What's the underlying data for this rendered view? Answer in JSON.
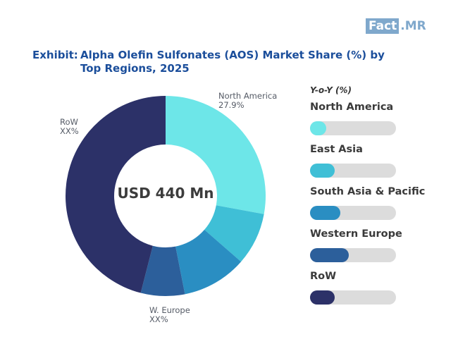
{
  "brand": {
    "logo_part1": "Fact",
    "logo_part2": ".MR"
  },
  "title": {
    "prefix": "Exhibit:",
    "text": "Alpha Olefin Sulfonates (AOS) Market Share (%) by Top Regions, 2025"
  },
  "chart_data": {
    "type": "donut",
    "center_label": "USD 440 Mn",
    "slices": [
      {
        "name": "North America",
        "value": 27.9,
        "color": "#6de6e8"
      },
      {
        "name": "East Asia",
        "value": 8.5,
        "color": "#3fbfd6"
      },
      {
        "name": "South Asia & Pacific",
        "value": 10.5,
        "color": "#2a8ec2"
      },
      {
        "name": "Western Europe",
        "value": 7.1,
        "color": "#2c5f9b"
      },
      {
        "name": "RoW",
        "value": 46.0,
        "color": "#2c3168"
      }
    ],
    "slice_labels": [
      {
        "name": "North America",
        "value": "27.9%"
      },
      {
        "name": "RoW",
        "value": "XX%"
      },
      {
        "name": "W. Europe",
        "value": "XX%"
      }
    ],
    "legend": {
      "header": "Y-o-Y (%)",
      "items": [
        {
          "name": "North America",
          "color": "#6de6e8",
          "fill_fraction": 0.19
        },
        {
          "name": "East Asia",
          "color": "#3fbfd6",
          "fill_fraction": 0.29
        },
        {
          "name": "South Asia & Pacific",
          "color": "#2a8ec2",
          "fill_fraction": 0.35
        },
        {
          "name": "Western Europe",
          "color": "#2c5f9b",
          "fill_fraction": 0.45
        },
        {
          "name": "RoW",
          "color": "#2c3168",
          "fill_fraction": 0.29
        }
      ]
    }
  }
}
